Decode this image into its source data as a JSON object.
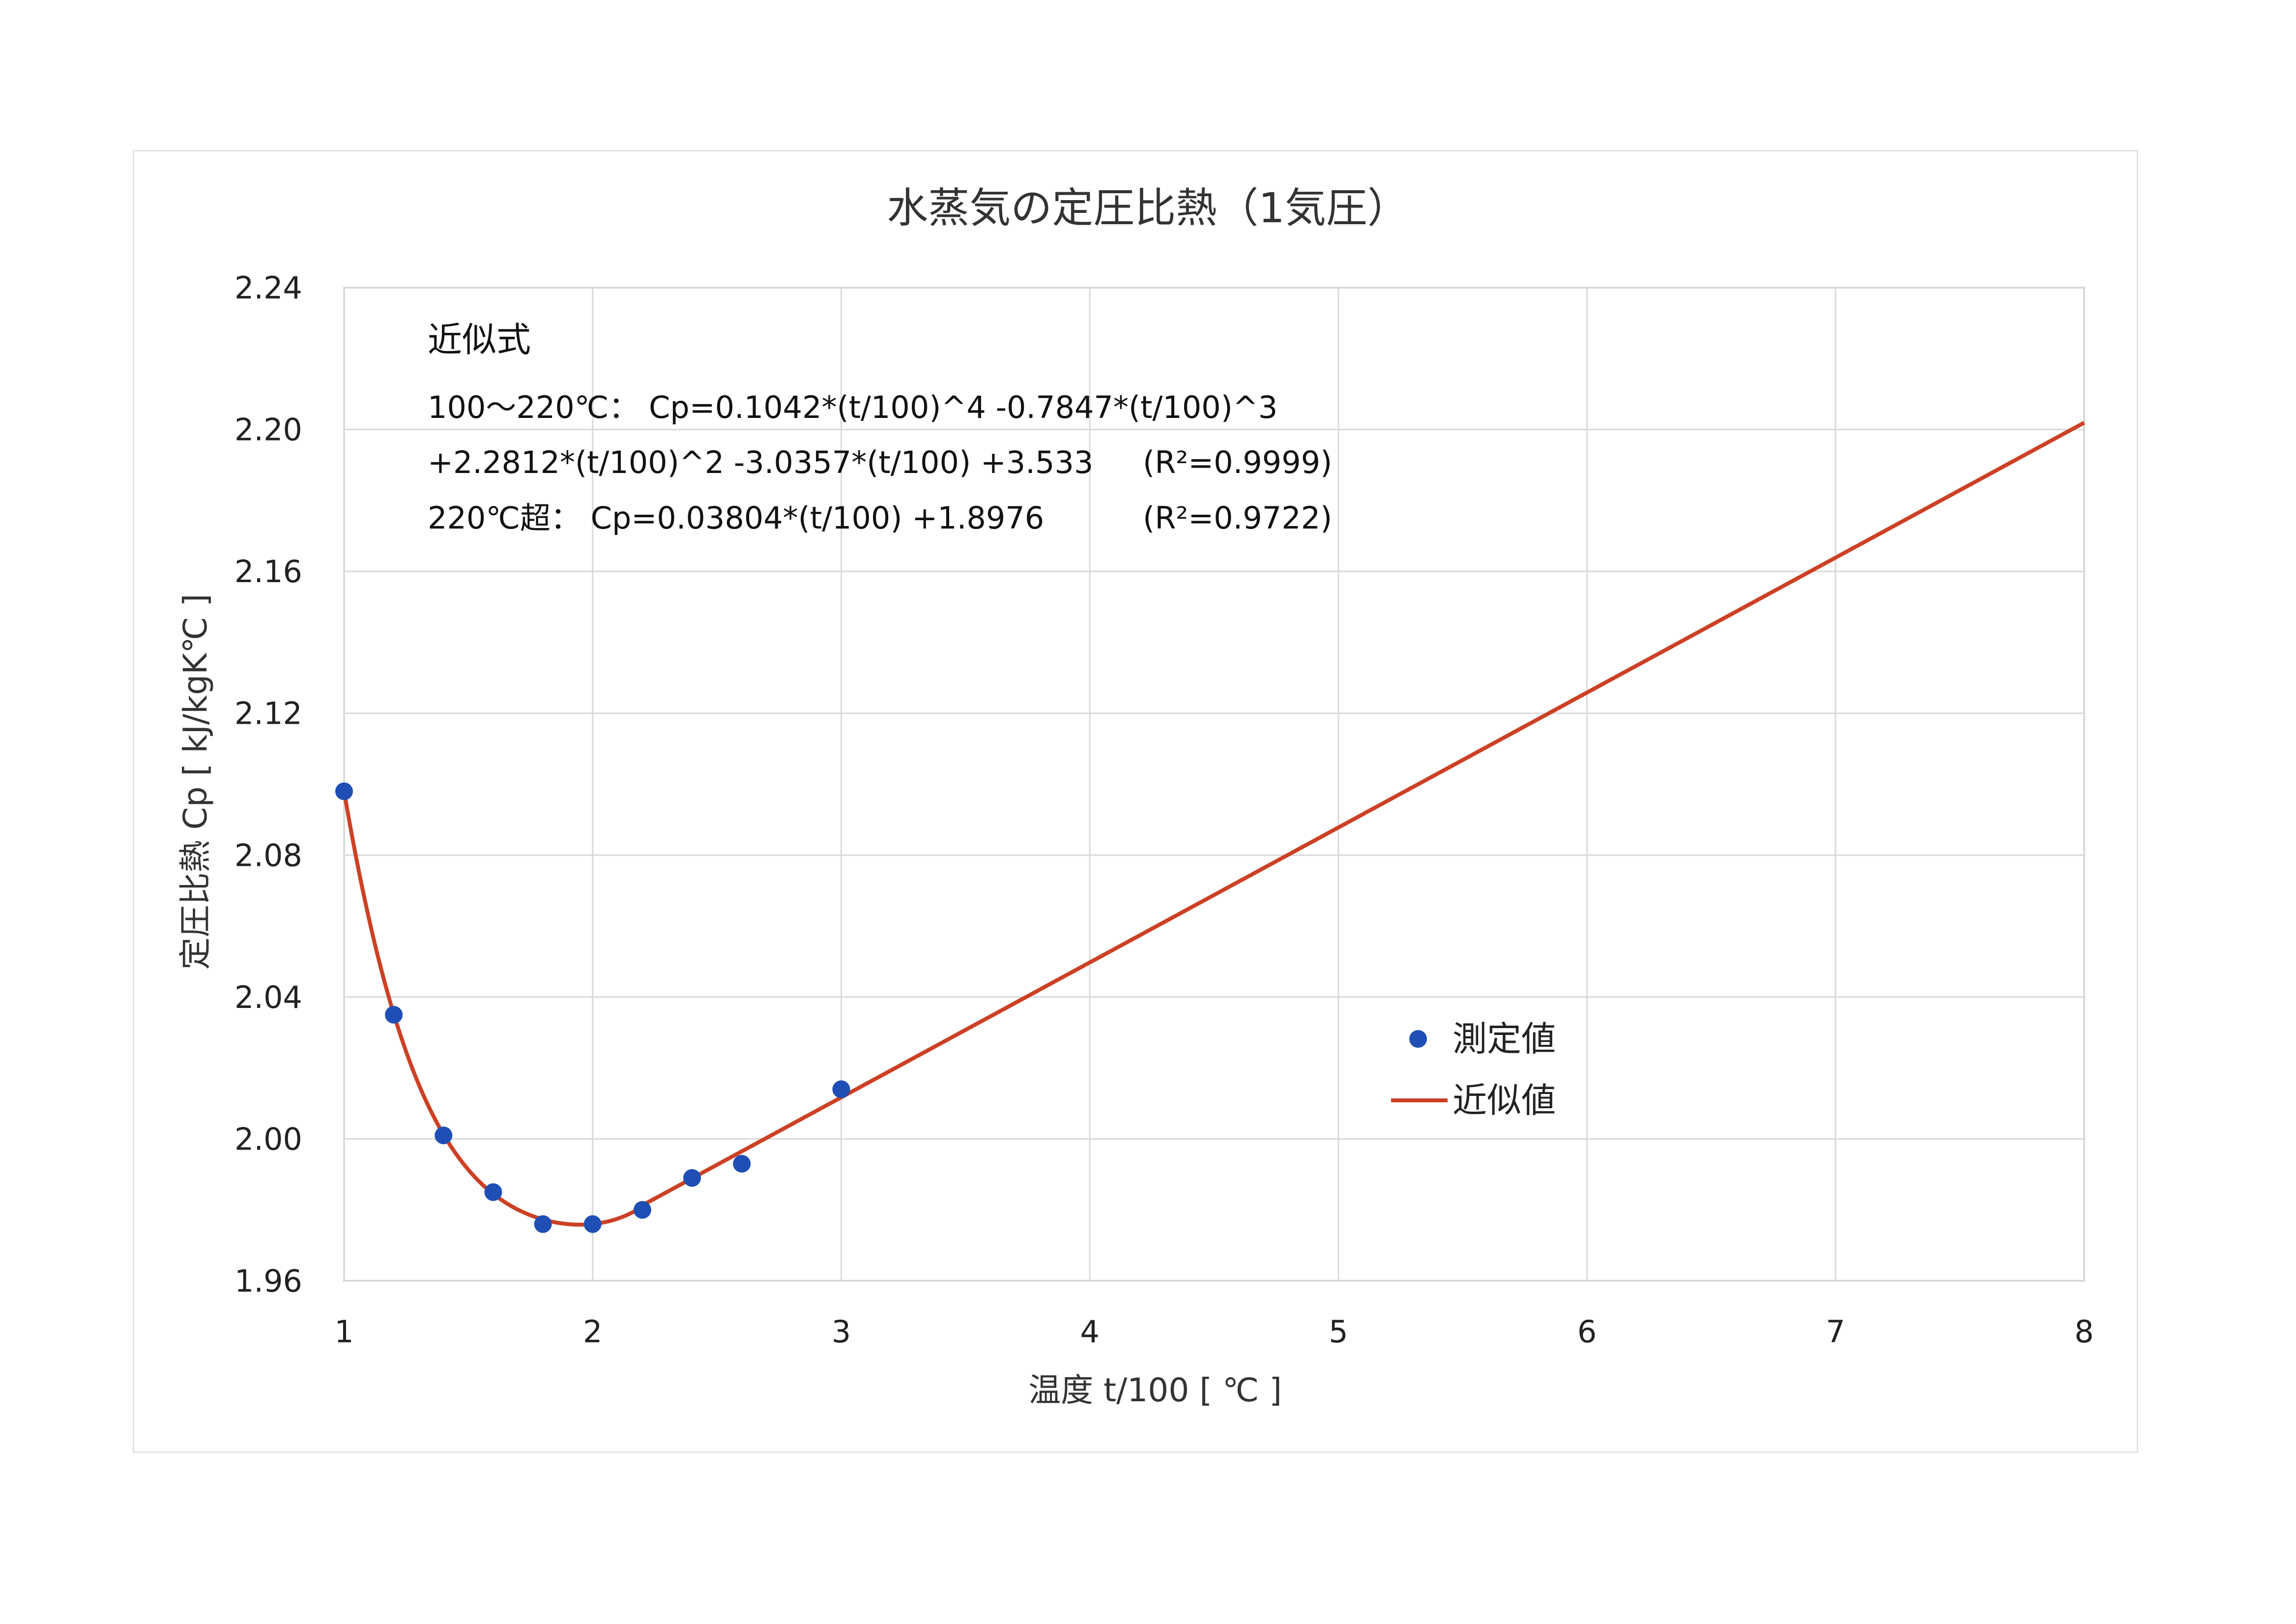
{
  "chart_data": {
    "type": "scatter",
    "title": "水蒸気の定圧比熱（1気圧）",
    "xlabel": "温度 t/100 [ ℃ ]",
    "ylabel": "定圧比熱 Cp [ kJ/kgK℃ ]",
    "xlim": [
      1,
      8
    ],
    "ylim": [
      1.96,
      2.24
    ],
    "x_ticks": [
      "1",
      "2",
      "3",
      "4",
      "5",
      "6",
      "7",
      "8"
    ],
    "y_ticks": [
      "1.96",
      "2.00",
      "2.04",
      "2.08",
      "2.12",
      "2.16",
      "2.20",
      "2.24"
    ],
    "grid": true,
    "legend_position": "right",
    "series": [
      {
        "name": "測定値",
        "type": "scatter",
        "color": "#1f4fb4",
        "x": [
          1.0,
          1.2,
          1.4,
          1.6,
          1.8,
          2.0,
          2.2,
          2.4,
          2.6,
          3.0
        ],
        "y": [
          2.098,
          2.035,
          2.001,
          1.985,
          1.976,
          1.976,
          1.98,
          1.989,
          1.993,
          2.014
        ]
      },
      {
        "name": "近似値",
        "type": "line",
        "color": "#cc4125"
      }
    ],
    "annotations": {
      "header": "近似式",
      "line1": "100～220℃：  Cp=0.1042*(t/100)^4 -0.7847*(t/100)^3",
      "line2_formula": "+2.2812*(t/100)^2 -3.0357*(t/100) +3.533",
      "line2_r2": "(R²=0.9999)",
      "line3_formula": "220℃超：  Cp=0.03804*(t/100) +1.8976",
      "line3_r2": "(R²=0.9722)"
    }
  }
}
